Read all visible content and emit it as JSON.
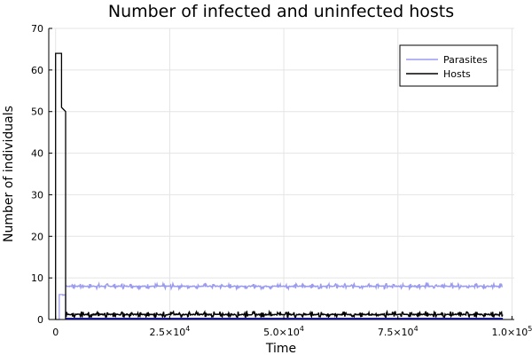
{
  "chart_data": {
    "type": "line",
    "title": "Number of infected and uninfected hosts",
    "xlabel": "Time",
    "ylabel": "Number of individuals",
    "xlim": [
      -1500,
      100500
    ],
    "ylim": [
      0,
      70
    ],
    "x_ticks": [
      0,
      25000,
      50000,
      75000,
      100000
    ],
    "x_tick_labels": [
      {
        "mantissa": "0",
        "exponent": ""
      },
      {
        "mantissa": "2.5×10",
        "exponent": "4"
      },
      {
        "mantissa": "5.0×10",
        "exponent": "4"
      },
      {
        "mantissa": "7.5×10",
        "exponent": "4"
      },
      {
        "mantissa": "1.0×10",
        "exponent": "5"
      }
    ],
    "y_ticks": [
      0,
      10,
      20,
      30,
      40,
      50,
      60,
      70
    ],
    "y_tick_labels": [
      "0",
      "10",
      "20",
      "30",
      "40",
      "50",
      "60",
      "70"
    ],
    "grid": true,
    "legend": "top-right",
    "series": [
      {
        "name": "Parasites",
        "color": "#9b9bf0",
        "early": [
          [
            0,
            0
          ],
          [
            800,
            0
          ],
          [
            800,
            6
          ],
          [
            1600,
            6
          ],
          [
            1600,
            5.8
          ],
          [
            2200,
            6
          ],
          [
            2200,
            0
          ]
        ],
        "steady_start": 2300,
        "steady_end": 98000,
        "base_level": 8,
        "jitter": 0.6,
        "burst_period": 1800
      },
      {
        "name": "Hosts",
        "color": "#000000",
        "early": [
          [
            0,
            0
          ],
          [
            0,
            64
          ],
          [
            1300,
            64
          ],
          [
            1300,
            51
          ],
          [
            2200,
            50
          ],
          [
            2200,
            0
          ]
        ],
        "steady_start": 2300,
        "steady_end": 98000,
        "base_level": 1.2,
        "jitter": 0.7,
        "burst_period": 1800
      }
    ],
    "baseline": {
      "color": "#1e1ebe",
      "value": 0
    }
  }
}
